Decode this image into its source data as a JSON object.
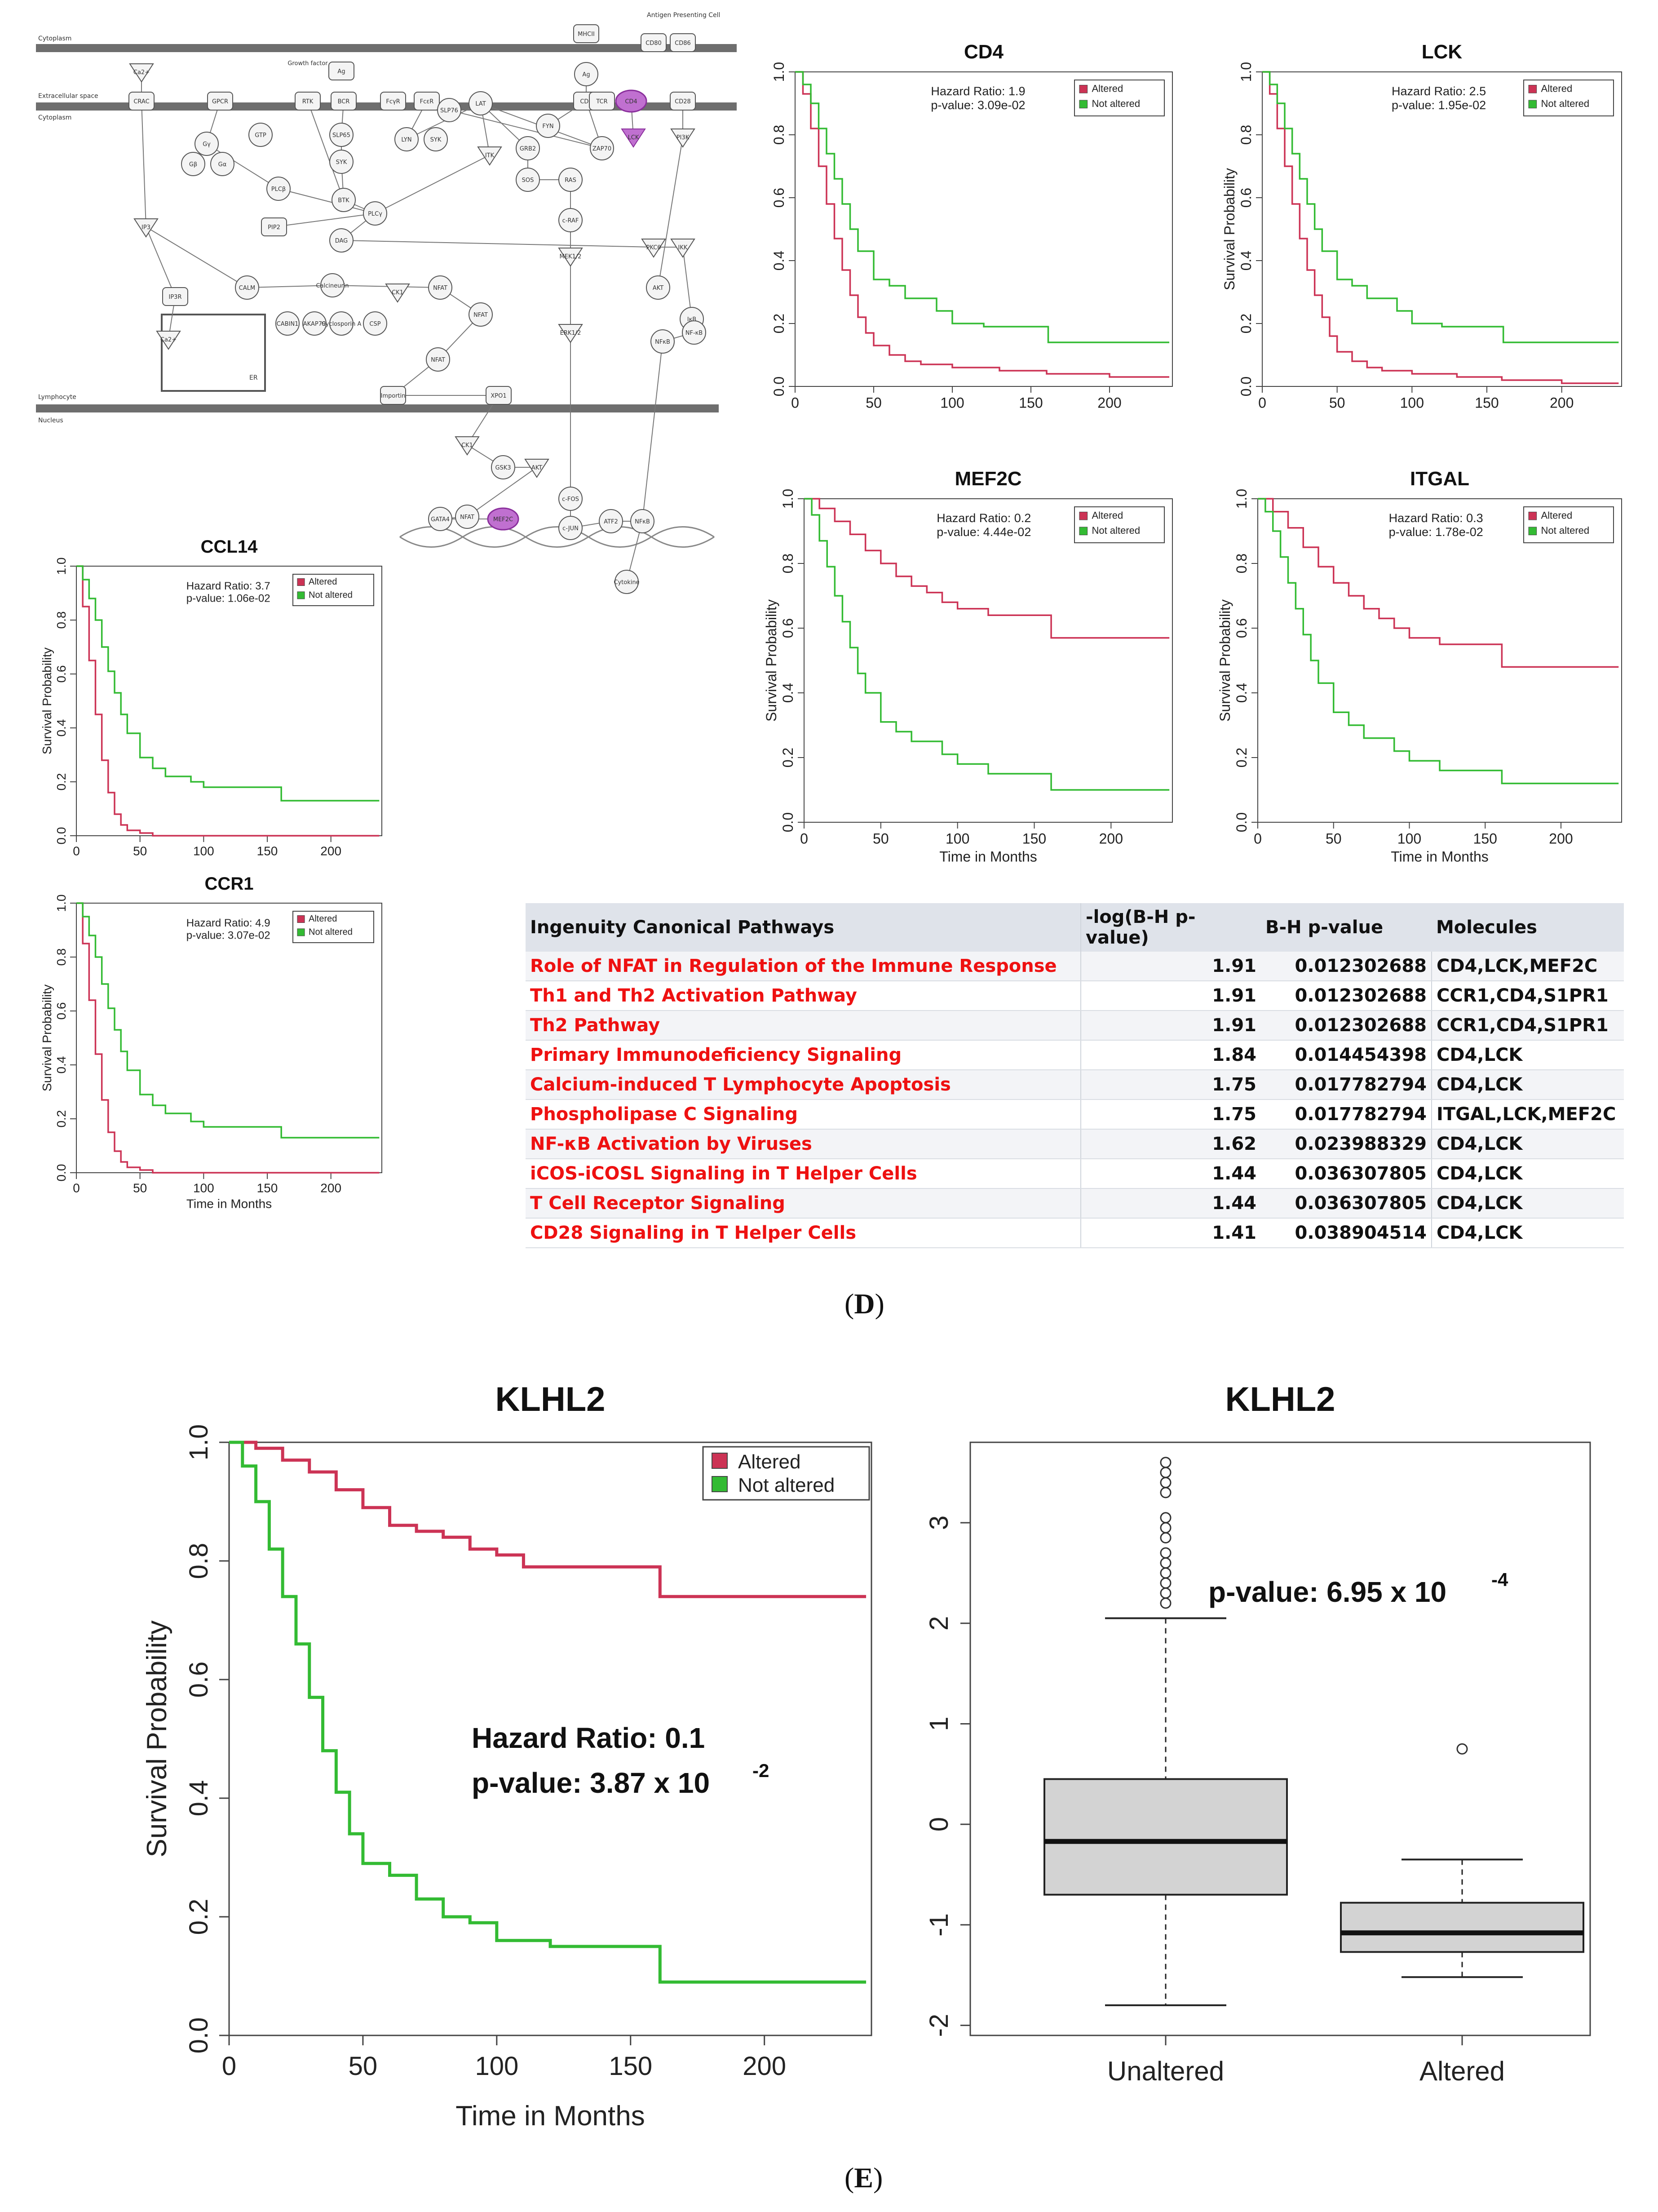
{
  "panel_labels": {
    "d": "D",
    "e": "E"
  },
  "pathway": {
    "regions": [
      "Cytoplasm",
      "Extracellular space",
      "Cytoplasm",
      "Lymphocyte",
      "Nucleus",
      "Antigen Presenting Cell",
      "ER"
    ],
    "nodes": [
      "Ca2+",
      "CRAC",
      "GPCR",
      "Gγ",
      "Gβ",
      "Gα",
      "GTP",
      "PLCβ",
      "Growth factor",
      "RTK",
      "Ag",
      "BCR",
      "SLP65",
      "SYK",
      "BTK",
      "FcγR",
      "FcεR",
      "LYN",
      "SYK",
      "SLP76",
      "LAT",
      "ITK",
      "GRB2",
      "SOS",
      "RAS",
      "c-RAF",
      "MEK1/2",
      "ERK1/2",
      "MHCII",
      "Ag",
      "CD3",
      "TCR",
      "CD4",
      "LCK",
      "ZAP70",
      "FYN",
      "CD80",
      "CD86",
      "CD28",
      "PI3K",
      "PKCθ",
      "IKK",
      "AKT",
      "IκB",
      "NF-κB",
      "NFκB",
      "IP3",
      "IP3R",
      "Ca2+",
      "PIP2",
      "DAG",
      "PLCγ",
      "CALM",
      "Calcineurin",
      "CABIN1",
      "AKAP79",
      "Cyclosporin A",
      "CSP",
      "CK1",
      "NFAT",
      "NFAT",
      "NFAT",
      "Importin",
      "XPO1",
      "CK1",
      "GSK3",
      "AKT",
      "NFAT",
      "GATA4",
      "MEF2C",
      "c-FOS",
      "c-JUN",
      "ATF2",
      "NFκB",
      "Cytokine"
    ]
  },
  "charts": {
    "cd4": {
      "title": "CD4",
      "hazard": "Hazard Ratio: 1.9",
      "pvalue": "p-value: 3.09e-02",
      "legend": [
        "Altered",
        "Not altered"
      ],
      "xlabel": "",
      "ylabel": "",
      "xticks": [
        "0",
        "50",
        "100",
        "150",
        "200"
      ],
      "yticks": [
        "0.0",
        "0.2",
        "0.4",
        "0.6",
        "0.8",
        "1.0"
      ]
    },
    "lck": {
      "title": "LCK",
      "hazard": "Hazard Ratio: 2.5",
      "pvalue": "p-value: 1.95e-02",
      "legend": [
        "Altered",
        "Not altered"
      ],
      "xlabel": "",
      "ylabel": "Survival Probability",
      "xticks": [
        "0",
        "50",
        "100",
        "150",
        "200"
      ],
      "yticks": [
        "0.0",
        "0.2",
        "0.4",
        "0.6",
        "0.8",
        "1.0"
      ]
    },
    "mef2c": {
      "title": "MEF2C",
      "hazard": "Hazard Ratio: 0.2",
      "pvalue": "p-value: 4.44e-02",
      "legend": [
        "Altered",
        "Not altered"
      ],
      "xlabel": "Time in Months",
      "ylabel": "Survival Probability",
      "xticks": [
        "0",
        "50",
        "100",
        "150",
        "200"
      ],
      "yticks": [
        "0.0",
        "0.2",
        "0.4",
        "0.6",
        "0.8",
        "1.0"
      ]
    },
    "itgal": {
      "title": "ITGAL",
      "hazard": "Hazard Ratio: 0.3",
      "pvalue": "p-value: 1.78e-02",
      "legend": [
        "Altered",
        "Not altered"
      ],
      "xlabel": "Time in Months",
      "ylabel": "Survival Probability",
      "xticks": [
        "0",
        "50",
        "100",
        "150",
        "200"
      ],
      "yticks": [
        "0.0",
        "0.2",
        "0.4",
        "0.6",
        "0.8",
        "1.0"
      ]
    },
    "ccl14": {
      "title": "CCL14",
      "hazard": "Hazard Ratio: 3.7",
      "pvalue": "p-value: 1.06e-02",
      "legend": [
        "Altered",
        "Not altered"
      ],
      "xlabel": "",
      "ylabel": "Survival Probability",
      "xticks": [
        "0",
        "50",
        "100",
        "150",
        "200"
      ],
      "yticks": [
        "0.0",
        "0.2",
        "0.4",
        "0.6",
        "0.8",
        "1.0"
      ]
    },
    "ccr1": {
      "title": "CCR1",
      "hazard": "Hazard Ratio: 4.9",
      "pvalue": "p-value: 3.07e-02",
      "legend": [
        "Altered",
        "Not altered"
      ],
      "xlabel": "Time in Months",
      "ylabel": "Survival Probability",
      "xticks": [
        "0",
        "50",
        "100",
        "150",
        "200"
      ],
      "yticks": [
        "0.0",
        "0.2",
        "0.4",
        "0.6",
        "0.8",
        "1.0"
      ]
    },
    "klhl2_km": {
      "title": "KLHL2",
      "hazard": "Hazard Ratio: 0.1",
      "pvalue_prefix": "p-value: 3.87 x 10",
      "pvalue_exp": "-2",
      "legend": [
        "Altered",
        "Not altered"
      ],
      "xlabel": "Time in Months",
      "ylabel": "Survival Probability",
      "xticks": [
        "0",
        "50",
        "100",
        "150",
        "200"
      ],
      "yticks": [
        "0.0",
        "0.2",
        "0.4",
        "0.6",
        "0.8",
        "1.0"
      ]
    },
    "klhl2_box": {
      "title": "KLHL2",
      "pvalue_prefix": "p-value: 6.95 x 10",
      "pvalue_exp": "-4",
      "categories": [
        "Unaltered",
        "Altered"
      ],
      "yticks": [
        "-2",
        "-1",
        "0",
        "1",
        "2",
        "3"
      ]
    }
  },
  "chart_data": [
    {
      "type": "line",
      "subtype": "kaplan-meier",
      "id": "cd4",
      "title": "CD4",
      "xlabel": "",
      "ylabel": "",
      "xlim": [
        0,
        240
      ],
      "ylim": [
        0,
        1
      ],
      "series": [
        {
          "name": "Altered",
          "color": "#cc3355",
          "x": [
            0,
            5,
            10,
            15,
            20,
            25,
            30,
            35,
            40,
            45,
            50,
            60,
            70,
            80,
            100,
            130,
            160,
            200,
            238
          ],
          "y": [
            1.0,
            0.93,
            0.82,
            0.7,
            0.58,
            0.47,
            0.37,
            0.29,
            0.22,
            0.17,
            0.13,
            0.1,
            0.08,
            0.07,
            0.06,
            0.05,
            0.04,
            0.03,
            0.03
          ]
        },
        {
          "name": "Not altered",
          "color": "#33bb33",
          "x": [
            0,
            5,
            10,
            15,
            20,
            25,
            30,
            35,
            40,
            50,
            60,
            70,
            90,
            100,
            120,
            160,
            161,
            238
          ],
          "y": [
            1.0,
            0.96,
            0.9,
            0.82,
            0.74,
            0.66,
            0.58,
            0.5,
            0.43,
            0.34,
            0.32,
            0.28,
            0.24,
            0.2,
            0.19,
            0.19,
            0.14,
            0.14
          ]
        }
      ]
    },
    {
      "type": "line",
      "subtype": "kaplan-meier",
      "id": "lck",
      "title": "LCK",
      "xlabel": "",
      "ylabel": "Survival Probability",
      "xlim": [
        0,
        240
      ],
      "ylim": [
        0,
        1
      ],
      "series": [
        {
          "name": "Altered",
          "color": "#cc3355",
          "x": [
            0,
            5,
            10,
            15,
            20,
            25,
            30,
            35,
            40,
            45,
            50,
            60,
            70,
            80,
            100,
            130,
            160,
            200,
            238
          ],
          "y": [
            1.0,
            0.93,
            0.82,
            0.7,
            0.58,
            0.47,
            0.37,
            0.29,
            0.22,
            0.16,
            0.11,
            0.08,
            0.06,
            0.05,
            0.04,
            0.03,
            0.02,
            0.01,
            0.01
          ]
        },
        {
          "name": "Not altered",
          "color": "#33bb33",
          "x": [
            0,
            5,
            10,
            15,
            20,
            25,
            30,
            35,
            40,
            50,
            60,
            70,
            90,
            100,
            120,
            160,
            161,
            238
          ],
          "y": [
            1.0,
            0.96,
            0.9,
            0.82,
            0.74,
            0.66,
            0.58,
            0.5,
            0.43,
            0.34,
            0.32,
            0.28,
            0.24,
            0.2,
            0.19,
            0.19,
            0.14,
            0.14
          ]
        }
      ]
    },
    {
      "type": "line",
      "subtype": "kaplan-meier",
      "id": "mef2c",
      "title": "MEF2C",
      "xlabel": "Time in Months",
      "ylabel": "Survival Probability",
      "xlim": [
        0,
        240
      ],
      "ylim": [
        0,
        1
      ],
      "series": [
        {
          "name": "Altered",
          "color": "#cc3355",
          "x": [
            0,
            10,
            20,
            30,
            40,
            50,
            60,
            70,
            80,
            90,
            100,
            120,
            160,
            161,
            238
          ],
          "y": [
            1.0,
            0.97,
            0.93,
            0.89,
            0.84,
            0.8,
            0.76,
            0.73,
            0.71,
            0.68,
            0.66,
            0.64,
            0.64,
            0.57,
            0.57
          ]
        },
        {
          "name": "Not altered",
          "color": "#33bb33",
          "x": [
            0,
            5,
            10,
            15,
            20,
            25,
            30,
            35,
            40,
            50,
            60,
            70,
            90,
            100,
            120,
            160,
            161,
            238
          ],
          "y": [
            1.0,
            0.95,
            0.87,
            0.79,
            0.7,
            0.62,
            0.54,
            0.46,
            0.4,
            0.31,
            0.28,
            0.25,
            0.21,
            0.18,
            0.15,
            0.15,
            0.1,
            0.1
          ]
        }
      ]
    },
    {
      "type": "line",
      "subtype": "kaplan-meier",
      "id": "itgal",
      "title": "ITGAL",
      "xlabel": "Time in Months",
      "ylabel": "Survival Probability",
      "xlim": [
        0,
        240
      ],
      "ylim": [
        0,
        1
      ],
      "series": [
        {
          "name": "Altered",
          "color": "#cc3355",
          "x": [
            0,
            10,
            20,
            30,
            40,
            50,
            60,
            70,
            80,
            90,
            100,
            120,
            160,
            161,
            238
          ],
          "y": [
            1.0,
            0.96,
            0.91,
            0.85,
            0.79,
            0.74,
            0.7,
            0.66,
            0.63,
            0.6,
            0.57,
            0.55,
            0.55,
            0.48,
            0.48
          ]
        },
        {
          "name": "Not altered",
          "color": "#33bb33",
          "x": [
            0,
            5,
            10,
            15,
            20,
            25,
            30,
            35,
            40,
            50,
            60,
            70,
            90,
            100,
            120,
            160,
            161,
            238
          ],
          "y": [
            1.0,
            0.96,
            0.9,
            0.82,
            0.74,
            0.66,
            0.58,
            0.5,
            0.43,
            0.34,
            0.3,
            0.26,
            0.22,
            0.19,
            0.16,
            0.16,
            0.12,
            0.12
          ]
        }
      ]
    },
    {
      "type": "line",
      "subtype": "kaplan-meier",
      "id": "ccl14",
      "title": "CCL14",
      "xlabel": "",
      "ylabel": "Survival Probability",
      "xlim": [
        0,
        240
      ],
      "ylim": [
        0,
        1
      ],
      "series": [
        {
          "name": "Altered",
          "color": "#cc3355",
          "x": [
            0,
            5,
            10,
            15,
            20,
            25,
            30,
            35,
            40,
            50,
            60,
            80,
            100,
            238
          ],
          "y": [
            1.0,
            0.85,
            0.65,
            0.45,
            0.28,
            0.16,
            0.08,
            0.04,
            0.02,
            0.01,
            0.0,
            0.0,
            0.0,
            0.0
          ]
        },
        {
          "name": "Not altered",
          "color": "#33bb33",
          "x": [
            0,
            5,
            10,
            15,
            20,
            25,
            30,
            35,
            40,
            50,
            60,
            70,
            90,
            100,
            120,
            160,
            161,
            238
          ],
          "y": [
            1.0,
            0.95,
            0.88,
            0.8,
            0.7,
            0.61,
            0.53,
            0.45,
            0.38,
            0.29,
            0.25,
            0.22,
            0.2,
            0.18,
            0.18,
            0.18,
            0.13,
            0.13
          ]
        }
      ]
    },
    {
      "type": "line",
      "subtype": "kaplan-meier",
      "id": "ccr1",
      "title": "CCR1",
      "xlabel": "Time in Months",
      "ylabel": "Survival Probability",
      "xlim": [
        0,
        240
      ],
      "ylim": [
        0,
        1
      ],
      "series": [
        {
          "name": "Altered",
          "color": "#cc3355",
          "x": [
            0,
            5,
            10,
            15,
            20,
            25,
            30,
            35,
            40,
            50,
            60,
            80,
            100,
            238
          ],
          "y": [
            1.0,
            0.85,
            0.64,
            0.44,
            0.27,
            0.15,
            0.08,
            0.04,
            0.02,
            0.01,
            0.0,
            0.0,
            0.0,
            0.0
          ]
        },
        {
          "name": "Not altered",
          "color": "#33bb33",
          "x": [
            0,
            5,
            10,
            15,
            20,
            25,
            30,
            35,
            40,
            50,
            60,
            70,
            90,
            100,
            120,
            160,
            161,
            238
          ],
          "y": [
            1.0,
            0.95,
            0.88,
            0.8,
            0.7,
            0.61,
            0.53,
            0.45,
            0.38,
            0.29,
            0.25,
            0.22,
            0.19,
            0.17,
            0.17,
            0.17,
            0.13,
            0.13
          ]
        }
      ]
    },
    {
      "type": "line",
      "subtype": "kaplan-meier",
      "id": "klhl2_km",
      "title": "KLHL2",
      "xlabel": "Time in Months",
      "ylabel": "Survival Probability",
      "xlim": [
        0,
        240
      ],
      "ylim": [
        0,
        1
      ],
      "annotations": [
        "Hazard Ratio: 0.1",
        "p-value: 3.87 x 10^-2"
      ],
      "series": [
        {
          "name": "Altered",
          "color": "#cc3355",
          "x": [
            0,
            10,
            20,
            30,
            40,
            50,
            60,
            70,
            80,
            90,
            100,
            110,
            120,
            160,
            161,
            238
          ],
          "y": [
            1.0,
            0.99,
            0.97,
            0.95,
            0.92,
            0.89,
            0.86,
            0.85,
            0.84,
            0.82,
            0.81,
            0.79,
            0.79,
            0.79,
            0.74,
            0.74
          ]
        },
        {
          "name": "Not altered",
          "color": "#33bb33",
          "x": [
            0,
            5,
            10,
            15,
            20,
            25,
            30,
            35,
            40,
            45,
            50,
            60,
            70,
            80,
            90,
            100,
            120,
            160,
            161,
            238
          ],
          "y": [
            1.0,
            0.96,
            0.9,
            0.82,
            0.74,
            0.66,
            0.57,
            0.48,
            0.41,
            0.34,
            0.29,
            0.27,
            0.23,
            0.2,
            0.19,
            0.16,
            0.15,
            0.15,
            0.09,
            0.09
          ]
        }
      ]
    },
    {
      "type": "box",
      "id": "klhl2_box",
      "title": "KLHL2",
      "categories": [
        "Unaltered",
        "Altered"
      ],
      "ylim": [
        -2.1,
        3.8
      ],
      "annotations": [
        "p-value: 6.95 x 10^-4"
      ],
      "boxes": [
        {
          "name": "Unaltered",
          "min": -1.8,
          "q1": -0.7,
          "median": -0.17,
          "q3": 0.45,
          "max": 2.05,
          "outliers": [
            2.2,
            2.3,
            2.4,
            2.5,
            2.6,
            2.7,
            2.85,
            2.95,
            3.05,
            3.3,
            3.4,
            3.5,
            3.6
          ]
        },
        {
          "name": "Altered",
          "min": -1.52,
          "q1": -1.27,
          "median": -1.08,
          "q3": -0.78,
          "max": -0.35,
          "outliers": [
            0.75
          ]
        }
      ]
    }
  ],
  "ipa_table": {
    "headers": [
      "Ingenuity Canonical Pathways",
      "-log(B-H p-value)",
      "B-H p-value",
      "Molecules"
    ],
    "rows": [
      {
        "pathway": "Role of NFAT in Regulation of the Immune Response",
        "neglog": "1.91",
        "pval": "0.012302688",
        "molecules": "CD4,LCK,MEF2C"
      },
      {
        "pathway": "Th1 and Th2 Activation Pathway",
        "neglog": "1.91",
        "pval": "0.012302688",
        "molecules": "CCR1,CD4,S1PR1"
      },
      {
        "pathway": "Th2 Pathway",
        "neglog": "1.91",
        "pval": "0.012302688",
        "molecules": "CCR1,CD4,S1PR1"
      },
      {
        "pathway": "Primary Immunodeficiency Signaling",
        "neglog": "1.84",
        "pval": "0.014454398",
        "molecules": "CD4,LCK"
      },
      {
        "pathway": "Calcium-induced T Lymphocyte Apoptosis",
        "neglog": "1.75",
        "pval": "0.017782794",
        "molecules": "CD4,LCK"
      },
      {
        "pathway": "Phospholipase C Signaling",
        "neglog": "1.75",
        "pval": "0.017782794",
        "molecules": "ITGAL,LCK,MEF2C"
      },
      {
        "pathway": "NF-κB Activation by Viruses",
        "neglog": "1.62",
        "pval": "0.023988329",
        "molecules": "CD4,LCK"
      },
      {
        "pathway": "iCOS-iCOSL Signaling in T Helper Cells",
        "neglog": "1.44",
        "pval": "0.036307805",
        "molecules": "CD4,LCK"
      },
      {
        "pathway": "T Cell Receptor Signaling",
        "neglog": "1.44",
        "pval": "0.036307805",
        "molecules": "CD4,LCK"
      },
      {
        "pathway": "CD28 Signaling in T Helper Cells",
        "neglog": "1.41",
        "pval": "0.038904514",
        "molecules": "CD4,LCK"
      }
    ]
  }
}
